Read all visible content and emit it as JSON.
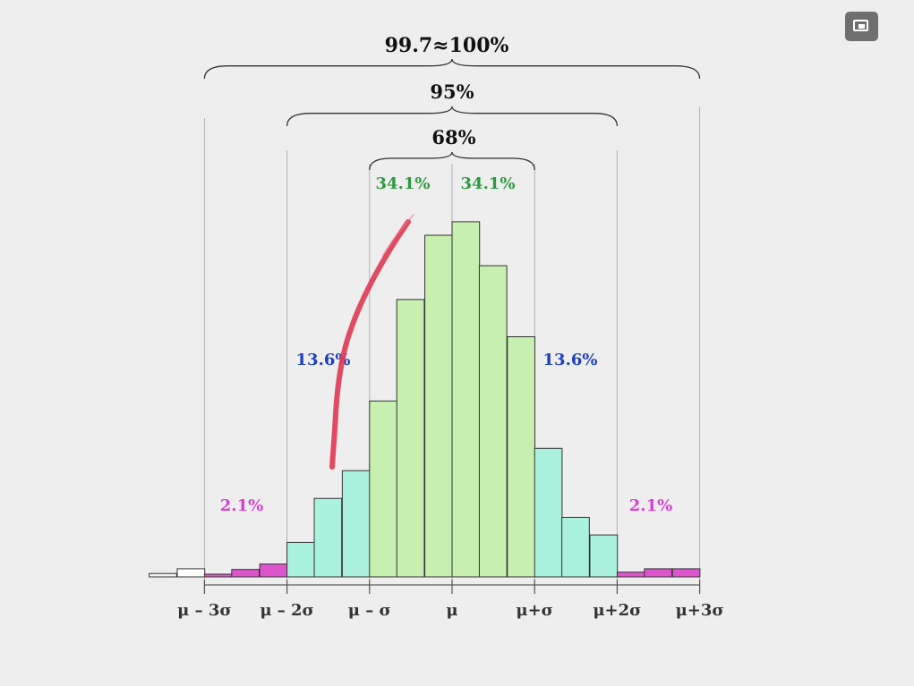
{
  "player": {
    "pip_icon": "picture-in-picture-icon"
  },
  "chart_data": {
    "type": "bar",
    "title": "",
    "xlabel": "",
    "ylabel": "",
    "tick_labels": [
      "μ – 3σ",
      "μ – 2σ",
      "μ – σ",
      "μ",
      "μ+σ",
      "μ+2σ",
      "μ+3σ"
    ],
    "bin_width_sigma": 0.333,
    "bins": [
      {
        "x_sigma": -3.67,
        "value": 0.5,
        "color": "#f4f4f4"
      },
      {
        "x_sigma": -3.33,
        "value": 1.2,
        "color": "#ffffff"
      },
      {
        "x_sigma": -3.0,
        "value": 0.4,
        "color": "#dd55cc"
      },
      {
        "x_sigma": -2.67,
        "value": 1.1,
        "color": "#dd55cc"
      },
      {
        "x_sigma": -2.33,
        "value": 1.9,
        "color": "#dd55cc"
      },
      {
        "x_sigma": -2.0,
        "value": 5.1,
        "color": "#aaf2de"
      },
      {
        "x_sigma": -1.67,
        "value": 11.6,
        "color": "#aaf2de"
      },
      {
        "x_sigma": -1.33,
        "value": 15.7,
        "color": "#aaf2de"
      },
      {
        "x_sigma": -1.0,
        "value": 26.0,
        "color": "#c7efb0"
      },
      {
        "x_sigma": -0.67,
        "value": 41.0,
        "color": "#c7efb0"
      },
      {
        "x_sigma": -0.33,
        "value": 50.5,
        "color": "#c7efb0"
      },
      {
        "x_sigma": 0.0,
        "value": 52.5,
        "color": "#c7efb0"
      },
      {
        "x_sigma": 0.33,
        "value": 46.0,
        "color": "#c7efb0"
      },
      {
        "x_sigma": 0.67,
        "value": 35.5,
        "color": "#c7efb0"
      },
      {
        "x_sigma": 1.0,
        "value": 19.0,
        "color": "#aaf2de"
      },
      {
        "x_sigma": 1.33,
        "value": 8.8,
        "color": "#aaf2de"
      },
      {
        "x_sigma": 1.67,
        "value": 6.2,
        "color": "#aaf2de"
      },
      {
        "x_sigma": 2.0,
        "value": 0.7,
        "color": "#dd55cc"
      },
      {
        "x_sigma": 2.33,
        "value": 1.2,
        "color": "#dd55cc"
      },
      {
        "x_sigma": 2.67,
        "value": 1.2,
        "color": "#dd55cc"
      }
    ],
    "ylim": [
      0,
      55
    ],
    "xlim_sigma": [
      -3.7,
      3.3
    ],
    "brace_labels": {
      "b99": "99.7≈100%",
      "b95": "95%",
      "b68": "68%"
    },
    "region_labels": {
      "center_left": "34.1%",
      "center_right": "34.1%",
      "mid_left": "13.6%",
      "mid_right": "13.6%",
      "tail_left": "2.1%",
      "tail_right": "2.1%"
    },
    "colors": {
      "green_label": "#2e9a3f",
      "blue_label": "#1f3fbf",
      "magenta_label": "#d63fd6",
      "annotation_stroke": "#e0324e"
    }
  }
}
